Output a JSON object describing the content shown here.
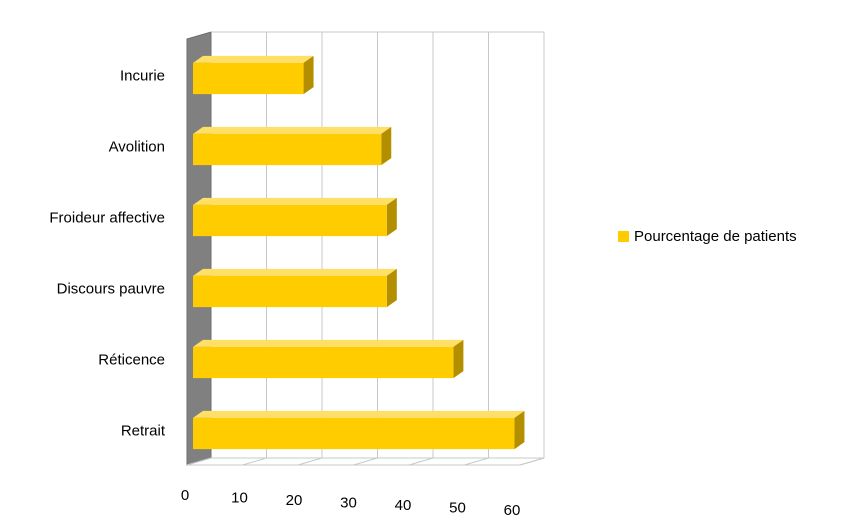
{
  "chart_data": {
    "type": "bar",
    "orientation": "horizontal",
    "three_d": true,
    "categories": [
      "Retrait",
      "Réticence",
      "Discours pauvre",
      "Froideur affective",
      "Avolition",
      "Incurie"
    ],
    "series": [
      {
        "name": "Pourcentage de patients",
        "values": [
          59,
          48,
          36,
          36,
          35,
          21
        ]
      }
    ],
    "xticks": [
      "0",
      "10",
      "20",
      "30",
      "40",
      "50",
      "60"
    ],
    "xlim": [
      0,
      60
    ],
    "grid": true,
    "legend": "right",
    "colors": {
      "bar_front": "#ffcc00",
      "bar_top": "#ffe066",
      "bar_side": "#b38f00",
      "back_wall": "#808080",
      "grid": "#c8c8c8"
    }
  }
}
